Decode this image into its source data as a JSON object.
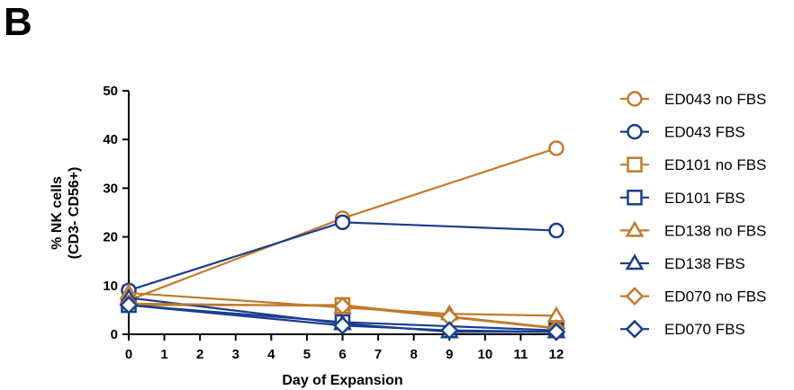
{
  "panel_label": "B",
  "colors": {
    "orange": "#C07A2C",
    "blue": "#1A3E8C"
  },
  "chart_data": {
    "type": "line",
    "title": "",
    "xlabel": "Day of Expansion",
    "ylabel_lines": [
      "% NK cells",
      "(CD3- CD56+)"
    ],
    "xlim": [
      0,
      12
    ],
    "ylim": [
      0,
      50
    ],
    "x_ticks": [
      0,
      1,
      2,
      3,
      4,
      5,
      6,
      7,
      8,
      9,
      10,
      11,
      12
    ],
    "y_ticks": [
      0,
      10,
      20,
      30,
      40,
      50
    ],
    "grid": false,
    "legend_position": "right",
    "series": [
      {
        "name": "ED043 no FBS",
        "color": "#C07A2C",
        "marker": "circle",
        "x": [
          0,
          6,
          12
        ],
        "y": [
          7,
          23.8,
          38.2
        ]
      },
      {
        "name": "ED043 FBS",
        "color": "#1A3E8C",
        "marker": "circle",
        "x": [
          0,
          6,
          12
        ],
        "y": [
          9,
          23,
          21.3
        ]
      },
      {
        "name": "ED101 no FBS",
        "color": "#C07A2C",
        "marker": "square",
        "x": [
          0,
          6,
          12
        ],
        "y": [
          6,
          6,
          1.3
        ]
      },
      {
        "name": "ED101 FBS",
        "color": "#1A3E8C",
        "marker": "square",
        "x": [
          0,
          6,
          12
        ],
        "y": [
          6,
          2.5,
          0.8
        ]
      },
      {
        "name": "ED138 no FBS",
        "color": "#C07A2C",
        "marker": "triangle",
        "x": [
          0,
          6,
          9,
          12
        ],
        "y": [
          8.5,
          5.5,
          4.2,
          3.8
        ]
      },
      {
        "name": "ED138 FBS",
        "color": "#1A3E8C",
        "marker": "triangle",
        "x": [
          0,
          6,
          9,
          12
        ],
        "y": [
          7.5,
          2.2,
          0.5,
          0.5
        ]
      },
      {
        "name": "ED070 no FBS",
        "color": "#C07A2C",
        "marker": "diamond",
        "x": [
          0,
          6,
          9,
          12
        ],
        "y": [
          6.3,
          5.8,
          3.5,
          1.2
        ]
      },
      {
        "name": "ED070 FBS",
        "color": "#1A3E8C",
        "marker": "diamond",
        "x": [
          0,
          6,
          9,
          12
        ],
        "y": [
          6,
          1.8,
          0.8,
          0.5
        ]
      }
    ]
  }
}
